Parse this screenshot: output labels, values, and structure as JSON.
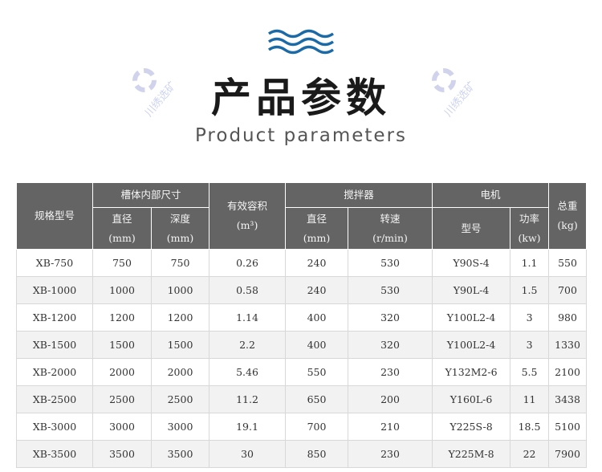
{
  "header": {
    "title": "产品参数",
    "subtitle": "Product parameters",
    "wave_color": "#1a6aa8"
  },
  "watermark": "川绣选矿",
  "table": {
    "groups": {
      "model": "规格型号",
      "tank": "槽体内部尺寸",
      "volume": "有效容积",
      "volume_unit": "(m³)",
      "agitator": "搅拌器",
      "motor": "电机",
      "weight": "总重",
      "weight_unit": "(kg)"
    },
    "sub": {
      "tank_dia": "直径",
      "tank_dia_unit": "(mm)",
      "tank_depth": "深度",
      "tank_depth_unit": "(mm)",
      "ag_dia": "直径",
      "ag_dia_unit": "(mm)",
      "ag_speed": "转速",
      "ag_speed_unit": "(r/min)",
      "motor_model": "型号",
      "motor_power": "功率",
      "motor_power_unit": "(kw)"
    },
    "rows": [
      [
        "XB-750",
        "750",
        "750",
        "0.26",
        "240",
        "530",
        "Y90S-4",
        "1.1",
        "550"
      ],
      [
        "XB-1000",
        "1000",
        "1000",
        "0.58",
        "240",
        "530",
        "Y90L-4",
        "1.5",
        "700"
      ],
      [
        "XB-1200",
        "1200",
        "1200",
        "1.14",
        "400",
        "320",
        "Y100L2-4",
        "3",
        "980"
      ],
      [
        "XB-1500",
        "1500",
        "1500",
        "2.2",
        "400",
        "320",
        "Y100L2-4",
        "3",
        "1330"
      ],
      [
        "XB-2000",
        "2000",
        "2000",
        "5.46",
        "550",
        "230",
        "Y132M2-6",
        "5.5",
        "2100"
      ],
      [
        "XB-2500",
        "2500",
        "2500",
        "11.2",
        "650",
        "200",
        "Y160L-6",
        "11",
        "3438"
      ],
      [
        "XB-3000",
        "3000",
        "3000",
        "19.1",
        "700",
        "210",
        "Y225S-8",
        "18.5",
        "5100"
      ],
      [
        "XB-3500",
        "3500",
        "3500",
        "30",
        "850",
        "230",
        "Y225M-8",
        "22",
        "7900"
      ]
    ]
  },
  "colors": {
    "header_bg": "#646464",
    "row_alt": "#f2f2f2"
  }
}
